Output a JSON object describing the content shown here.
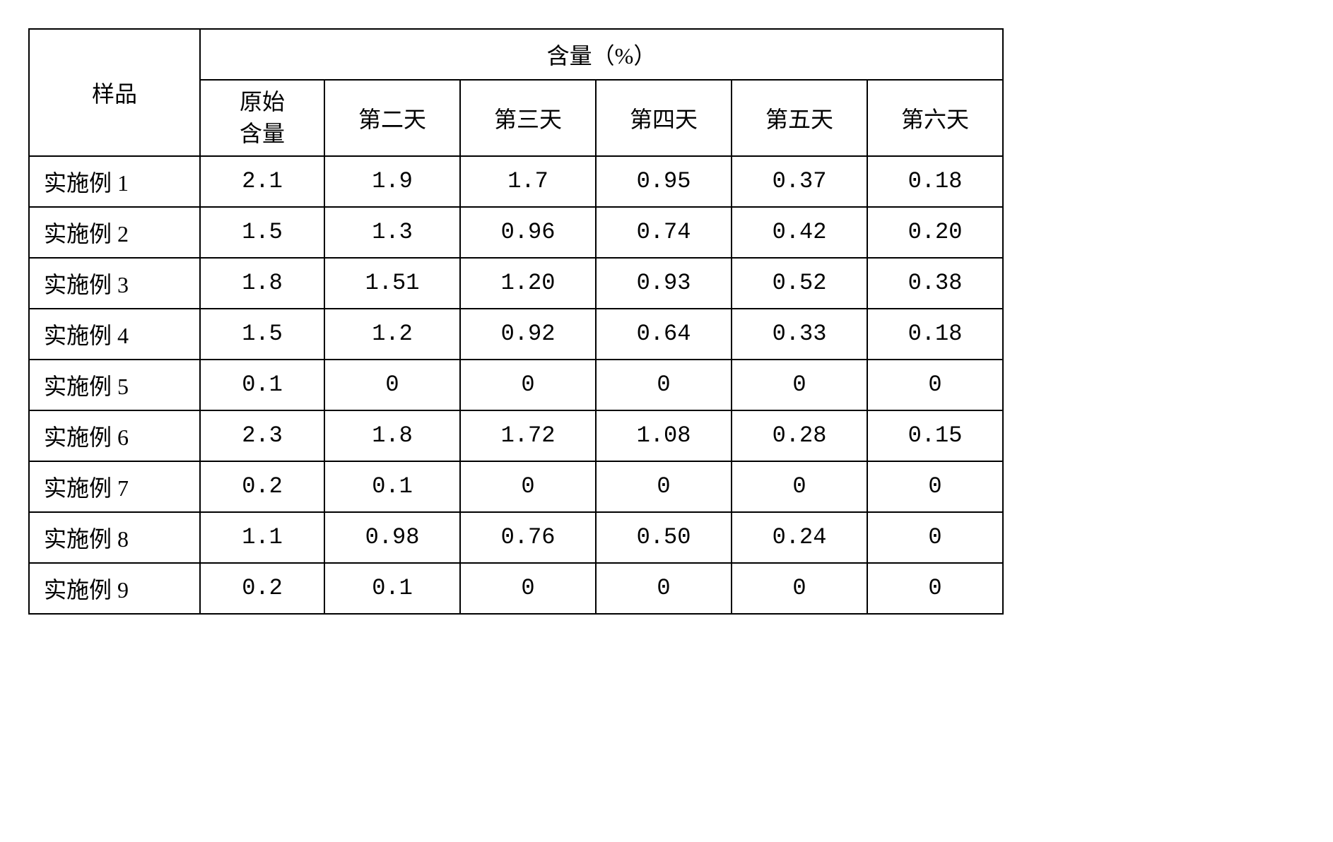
{
  "table": {
    "type": "table",
    "header": {
      "sample_label": "样品",
      "content_label": "含量（%）",
      "sub_headers": [
        "原始\n含量",
        "第二天",
        "第三天",
        "第四天",
        "第五天",
        "第六天"
      ]
    },
    "rows": [
      {
        "sample": "实施例 1",
        "values": [
          "2.1",
          "1.9",
          "1.7",
          "0.95",
          "0.37",
          "0.18"
        ]
      },
      {
        "sample": "实施例 2",
        "values": [
          "1.5",
          "1.3",
          "0.96",
          "0.74",
          "0.42",
          "0.20"
        ]
      },
      {
        "sample": "实施例 3",
        "values": [
          "1.8",
          "1.51",
          "1.20",
          "0.93",
          "0.52",
          "0.38"
        ]
      },
      {
        "sample": "实施例 4",
        "values": [
          "1.5",
          "1.2",
          "0.92",
          "0.64",
          "0.33",
          "0.18"
        ]
      },
      {
        "sample": "实施例 5",
        "values": [
          "0.1",
          "0",
          "0",
          "0",
          "0",
          "0"
        ]
      },
      {
        "sample": "实施例 6",
        "values": [
          "2.3",
          "1.8",
          "1.72",
          "1.08",
          "0.28",
          "0.15"
        ]
      },
      {
        "sample": "实施例 7",
        "values": [
          "0.2",
          "0.1",
          "0",
          "0",
          "0",
          "0"
        ]
      },
      {
        "sample": "实施例 8",
        "values": [
          "1.1",
          "0.98",
          "0.76",
          "0.50",
          "0.24",
          "0"
        ]
      },
      {
        "sample": "实施例 9",
        "values": [
          "0.2",
          "0.1",
          "0",
          "0",
          "0",
          "0"
        ]
      }
    ],
    "styling": {
      "border_color": "#000000",
      "border_width": 2,
      "background_color": "#ffffff",
      "text_color": "#000000",
      "header_fontsize": 32,
      "cell_fontsize": 32,
      "font_family": "SimSun"
    }
  }
}
